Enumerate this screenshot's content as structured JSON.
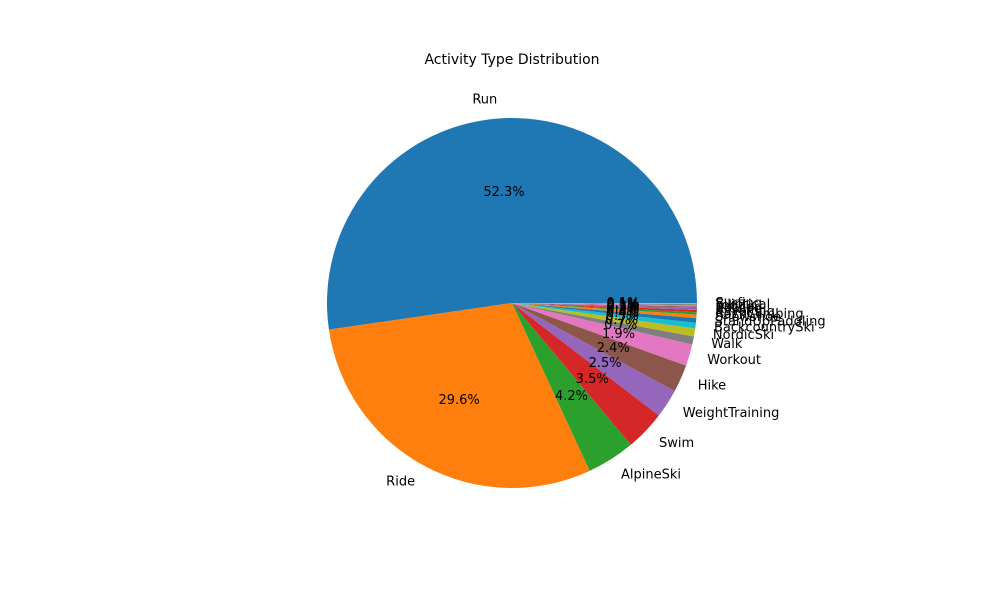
{
  "chart_data": {
    "type": "pie",
    "title": "Activity Type Distribution",
    "start_angle_deg": 0,
    "direction": "counterclockwise",
    "slices": [
      {
        "label": "Run",
        "value": 52.3,
        "pct_label": "52.3%",
        "color": "#1f77b4"
      },
      {
        "label": "Ride",
        "value": 29.6,
        "pct_label": "29.6%",
        "color": "#ff7f0e"
      },
      {
        "label": "AlpineSki",
        "value": 4.2,
        "pct_label": "4.2%",
        "color": "#2ca02c"
      },
      {
        "label": "Swim",
        "value": 3.5,
        "pct_label": "3.5%",
        "color": "#d62728"
      },
      {
        "label": "WeightTraining",
        "value": 2.5,
        "pct_label": "2.5%",
        "color": "#9467bd"
      },
      {
        "label": "Hike",
        "value": 2.4,
        "pct_label": "2.4%",
        "color": "#8c564b"
      },
      {
        "label": "Workout",
        "value": 1.9,
        "pct_label": "1.9%",
        "color": "#e377c2"
      },
      {
        "label": "Walk",
        "value": 0.7,
        "pct_label": "0.7%",
        "color": "#7f7f7f"
      },
      {
        "label": "NordicSki",
        "value": 0.7,
        "pct_label": "0.7%",
        "color": "#bcbd22"
      },
      {
        "label": "BackcountrySki",
        "value": 0.5,
        "pct_label": "0.5%",
        "color": "#17becf"
      },
      {
        "label": "StandUpPaddling",
        "value": 0.4,
        "pct_label": "0.4%",
        "color": "#1f77b4"
      },
      {
        "label": "Snowshoe",
        "value": 0.3,
        "pct_label": "0.3%",
        "color": "#ff7f0e"
      },
      {
        "label": "RockClimbing",
        "value": 0.2,
        "pct_label": "0.2%",
        "color": "#2ca02c"
      },
      {
        "label": "Kayaking",
        "value": 0.2,
        "pct_label": "0.2%",
        "color": "#d62728"
      },
      {
        "label": "Rowing",
        "value": 0.2,
        "pct_label": "0.2%",
        "color": "#9467bd"
      },
      {
        "label": "Soccer",
        "value": 0.1,
        "pct_label": "0.1%",
        "color": "#8c564b"
      },
      {
        "label": "Yoga",
        "value": 0.1,
        "pct_label": "0.1%",
        "color": "#e377c2"
      },
      {
        "label": "Elliptical",
        "value": 0.1,
        "pct_label": "0.1%",
        "color": "#7f7f7f"
      },
      {
        "label": "Surfing",
        "value": 0.1,
        "pct_label": "0.1%",
        "color": "#bcbd22"
      }
    ]
  }
}
